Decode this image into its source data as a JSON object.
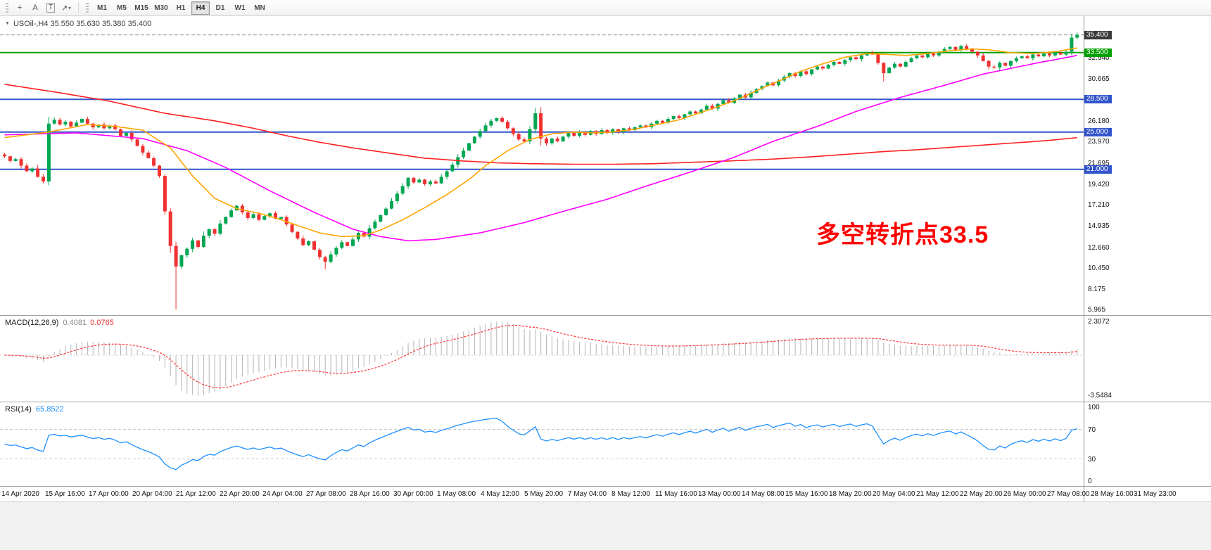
{
  "toolbar": {
    "tools": [
      {
        "id": "crosshair",
        "glyph": "+"
      },
      {
        "id": "text-label",
        "glyph": "A"
      },
      {
        "id": "text-box",
        "glyph": "T",
        "boxed": true
      },
      {
        "id": "arrow-objects",
        "glyph": "↗",
        "dropdown": true
      }
    ],
    "timeframes": [
      "M1",
      "M5",
      "M15",
      "M30",
      "H1",
      "H4",
      "D1",
      "W1",
      "MN"
    ],
    "active_timeframe": "H4"
  },
  "chart": {
    "symbol_line": "USOil-,H4 35.550 35.630 35.380 35.400",
    "annotation": {
      "text": "多空转折点33.5",
      "color": "#FF0000"
    },
    "axis": {
      "min": 5.4,
      "max": 37.4,
      "ticks": [
        "32.940",
        "30.665",
        "26.180",
        "23.970",
        "21.695",
        "19.420",
        "17.210",
        "14.935",
        "12.660",
        "10.450",
        "8.175",
        "5.965"
      ]
    },
    "levels": [
      {
        "price": 35.4,
        "label": "35.400",
        "style": "dashed",
        "color": "#8a8a8a",
        "box_bg": "#3c3c3c",
        "width": 1
      },
      {
        "price": 33.5,
        "label": "33.500",
        "style": "solid",
        "color": "#00A000",
        "box_bg": "#00A000",
        "width": 2
      },
      {
        "price": 28.5,
        "label": "28.500",
        "style": "solid",
        "color": "#3355CC",
        "box_bg": "#3355CC",
        "width": 2
      },
      {
        "price": 25.0,
        "label": "25.000",
        "style": "solid",
        "color": "#3355CC",
        "box_bg": "#3355CC",
        "width": 2
      },
      {
        "price": 21.0,
        "label": "21.000",
        "style": "solid",
        "color": "#3355CC",
        "box_bg": "#3355CC",
        "width": 2
      }
    ],
    "colors": {
      "bull": "#00A651",
      "bear": "#F03131",
      "ma_red": "#FF2020",
      "ma_orange": "#FFA500",
      "ma_magenta": "#FF00FF",
      "macd_hist": "#B4B4B4",
      "macd_signal": "#FF3333",
      "rsi_line": "#1E90FF",
      "rsi_level": "#C8C8C8",
      "zero_line": "#CFCFCF"
    }
  },
  "chart_data": {
    "type": "candlestick",
    "symbol": "USOil-",
    "period": "H4",
    "first_open": 22.6,
    "closes": [
      22.4,
      21.9,
      22.1,
      21.4,
      20.8,
      21.1,
      20.2,
      19.7,
      25.9,
      26.3,
      25.8,
      26.1,
      25.6,
      26.0,
      26.4,
      25.9,
      25.5,
      25.8,
      25.4,
      25.7,
      25.3,
      24.6,
      24.9,
      24.2,
      23.5,
      22.8,
      22.2,
      21.4,
      20.3,
      16.5,
      12.8,
      10.6,
      11.8,
      12.5,
      13.4,
      12.7,
      13.9,
      14.6,
      14.1,
      15.2,
      15.9,
      16.6,
      17.1,
      16.4,
      15.8,
      16.2,
      15.6,
      16.0,
      16.3,
      15.7,
      15.9,
      15.1,
      14.3,
      13.6,
      12.9,
      13.3,
      12.4,
      11.6,
      11.1,
      11.9,
      12.6,
      13.2,
      12.8,
      13.5,
      14.2,
      13.8,
      14.7,
      15.4,
      16.1,
      16.8,
      17.6,
      18.4,
      19.2,
      20.1,
      19.6,
      19.9,
      19.4,
      19.7,
      19.5,
      20.2,
      20.8,
      21.5,
      22.3,
      23.0,
      23.8,
      24.5,
      25.1,
      25.7,
      26.2,
      26.5,
      26.1,
      25.4,
      24.8,
      24.2,
      24.0,
      25.3,
      27.0,
      24.3,
      23.8,
      24.3,
      24.0,
      24.5,
      24.9,
      24.6,
      25.0,
      24.7,
      25.1,
      24.8,
      25.2,
      24.9,
      25.3,
      25.0,
      25.4,
      25.2,
      25.5,
      25.7,
      25.5,
      25.9,
      26.2,
      26.0,
      26.4,
      26.7,
      26.5,
      26.9,
      27.2,
      27.0,
      27.4,
      27.8,
      27.5,
      28.0,
      28.4,
      28.1,
      28.6,
      29.0,
      28.7,
      29.2,
      29.6,
      29.9,
      30.3,
      30.0,
      30.5,
      30.9,
      31.3,
      31.0,
      31.5,
      31.2,
      31.7,
      32.0,
      31.8,
      32.2,
      32.5,
      32.3,
      32.7,
      33.0,
      32.8,
      33.2,
      33.5,
      33.3,
      32.4,
      31.3,
      31.9,
      32.3,
      32.0,
      32.5,
      32.9,
      33.2,
      33.0,
      33.4,
      33.2,
      33.6,
      33.9,
      34.1,
      33.8,
      34.2,
      33.9,
      33.6,
      33.2,
      32.6,
      32.0,
      31.9,
      32.4,
      32.1,
      32.6,
      32.9,
      33.1,
      32.9,
      33.3,
      33.1,
      33.4,
      33.2,
      33.5,
      33.3,
      33.6,
      35.1,
      35.4
    ],
    "wick_overrides": [
      {
        "i": 31,
        "low": 6.0
      },
      {
        "i": 58,
        "low": 10.3
      },
      {
        "i": 96,
        "high": 27.6
      },
      {
        "i": 159,
        "low": 30.4
      },
      {
        "i": 194,
        "high": 35.65
      }
    ],
    "ma_lines": [
      {
        "name": "ma-slow-red",
        "color": "#FF2020",
        "width": 1.6,
        "points": [
          [
            0,
            30.1
          ],
          [
            10,
            29.2
          ],
          [
            19,
            28.3
          ],
          [
            29,
            27.0
          ],
          [
            38,
            26.2
          ],
          [
            45,
            25.4
          ],
          [
            51,
            24.6
          ],
          [
            57,
            23.9
          ],
          [
            63,
            23.3
          ],
          [
            70,
            22.7
          ],
          [
            76,
            22.2
          ],
          [
            83,
            21.9
          ],
          [
            89,
            21.7
          ],
          [
            96,
            21.6
          ],
          [
            103,
            21.55
          ],
          [
            110,
            21.55
          ],
          [
            117,
            21.6
          ],
          [
            124,
            21.75
          ],
          [
            131,
            21.9
          ],
          [
            139,
            22.1
          ],
          [
            146,
            22.35
          ],
          [
            152,
            22.6
          ],
          [
            159,
            22.9
          ],
          [
            165,
            23.1
          ],
          [
            171,
            23.35
          ],
          [
            177,
            23.6
          ],
          [
            183,
            23.85
          ],
          [
            189,
            24.1
          ],
          [
            194,
            24.4
          ]
        ]
      },
      {
        "name": "ma-mid-magenta",
        "color": "#FF00FF",
        "width": 1.6,
        "points": [
          [
            0,
            24.7
          ],
          [
            13,
            24.9
          ],
          [
            25,
            24.3
          ],
          [
            33,
            23.0
          ],
          [
            40,
            21.2
          ],
          [
            48,
            18.7
          ],
          [
            56,
            16.4
          ],
          [
            63,
            14.6
          ],
          [
            68,
            13.8
          ],
          [
            73,
            13.35
          ],
          [
            78,
            13.5
          ],
          [
            86,
            14.2
          ],
          [
            94,
            15.3
          ],
          [
            101,
            16.5
          ],
          [
            109,
            17.8
          ],
          [
            116,
            19.2
          ],
          [
            124,
            20.7
          ],
          [
            132,
            22.3
          ],
          [
            139,
            24.0
          ],
          [
            147,
            25.6
          ],
          [
            154,
            27.2
          ],
          [
            162,
            28.7
          ],
          [
            170,
            30.0
          ],
          [
            177,
            31.2
          ],
          [
            186,
            32.3
          ],
          [
            194,
            33.2
          ]
        ]
      },
      {
        "name": "ma-fast-orange",
        "color": "#FFA500",
        "width": 1.6,
        "points": [
          [
            0,
            24.4
          ],
          [
            8,
            25.0
          ],
          [
            15,
            25.8
          ],
          [
            20,
            25.6
          ],
          [
            25,
            25.2
          ],
          [
            30,
            23.3
          ],
          [
            34,
            20.3
          ],
          [
            38,
            17.9
          ],
          [
            42,
            16.8
          ],
          [
            46,
            16.3
          ],
          [
            49,
            15.8
          ],
          [
            53,
            15.0
          ],
          [
            57,
            14.2
          ],
          [
            61,
            13.8
          ],
          [
            65,
            13.9
          ],
          [
            68,
            14.5
          ],
          [
            72,
            15.6
          ],
          [
            76,
            16.9
          ],
          [
            80,
            18.3
          ],
          [
            84,
            19.9
          ],
          [
            87,
            21.4
          ],
          [
            91,
            23.0
          ],
          [
            95,
            24.2
          ],
          [
            99,
            24.8
          ],
          [
            103,
            25.0
          ],
          [
            106,
            24.9
          ],
          [
            110,
            25.0
          ],
          [
            114,
            25.3
          ],
          [
            118,
            25.8
          ],
          [
            122,
            26.3
          ],
          [
            125,
            26.9
          ],
          [
            129,
            27.7
          ],
          [
            133,
            28.6
          ],
          [
            137,
            29.7
          ],
          [
            141,
            30.7
          ],
          [
            144,
            31.5
          ],
          [
            148,
            32.3
          ],
          [
            152,
            33.0
          ],
          [
            156,
            33.4
          ],
          [
            160,
            33.3
          ],
          [
            163,
            33.2
          ],
          [
            167,
            33.4
          ],
          [
            171,
            33.7
          ],
          [
            175,
            33.9
          ],
          [
            178,
            33.8
          ],
          [
            182,
            33.5
          ],
          [
            186,
            33.4
          ],
          [
            190,
            33.6
          ],
          [
            194,
            34.0
          ]
        ]
      }
    ]
  },
  "macd": {
    "label_name": "MACD(12,26,9)",
    "value_main": "0.4081",
    "value_signal": "0.0765",
    "scale_max": "2.3072",
    "scale_min": "-3.5484",
    "fast": 12,
    "slow": 26,
    "signal": 9
  },
  "rsi": {
    "label_name": "RSI(14)",
    "value": "65.8522",
    "period": 14,
    "levels": [
      70,
      30
    ],
    "scale_labels": [
      "100",
      "70",
      "30",
      "0"
    ]
  },
  "time_axis": {
    "labels": [
      "14 Apr 2020",
      "15 Apr 16:00",
      "17 Apr 00:00",
      "20 Apr 04:00",
      "21 Apr 12:00",
      "22 Apr 20:00",
      "24 Apr 04:00",
      "27 Apr 08:00",
      "28 Apr 16:00",
      "30 Apr 00:00",
      "1 May 08:00",
      "4 May 12:00",
      "5 May 20:00",
      "7 May 04:00",
      "8 May 12:00",
      "11 May 16:00",
      "13 May 00:00",
      "14 May 08:00",
      "15 May 16:00",
      "18 May 20:00",
      "20 May 04:00",
      "21 May 12:00",
      "22 May 20:00",
      "26 May 00:00",
      "27 May 08:00",
      "28 May 16:00",
      "31 May 23:00"
    ]
  }
}
